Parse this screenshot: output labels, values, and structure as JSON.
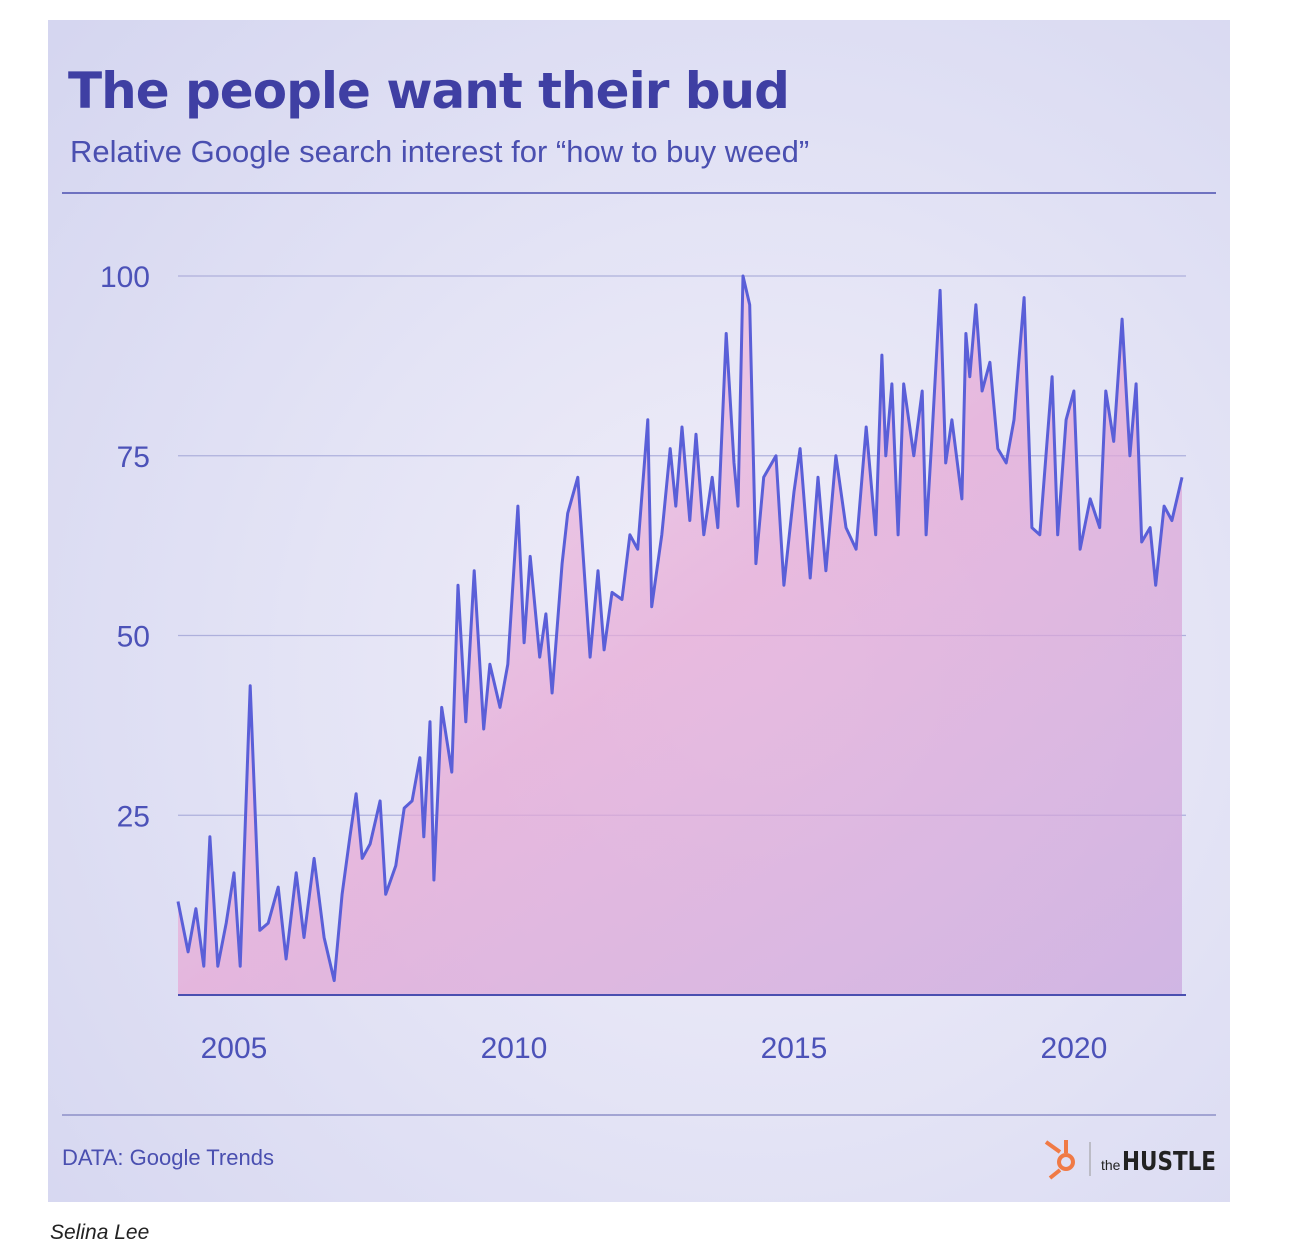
{
  "chart_data": {
    "type": "line",
    "title": "The people want their bud",
    "subtitle": "Relative Google search interest for “how to buy weed”",
    "source": "DATA: Google Trends",
    "brand": {
      "prefix": "the",
      "name": "HUSTLE"
    },
    "x": [
      2004.0,
      2004.18,
      2004.32,
      2004.46,
      2004.57,
      2004.71,
      2004.86,
      2005.0,
      2005.11,
      2005.29,
      2005.46,
      2005.61,
      2005.79,
      2005.93,
      2006.11,
      2006.25,
      2006.43,
      2006.61,
      2006.79,
      2006.93,
      2007.07,
      2007.18,
      2007.29,
      2007.43,
      2007.61,
      2007.71,
      2007.89,
      2008.04,
      2008.18,
      2008.32,
      2008.39,
      2008.5,
      2008.57,
      2008.71,
      2008.89,
      2009.0,
      2009.14,
      2009.29,
      2009.46,
      2009.57,
      2009.75,
      2009.89,
      2010.07,
      2010.18,
      2010.29,
      2010.46,
      2010.57,
      2010.68,
      2010.86,
      2010.96,
      2011.14,
      2011.36,
      2011.5,
      2011.61,
      2011.75,
      2011.93,
      2012.07,
      2012.21,
      2012.39,
      2012.46,
      2012.64,
      2012.79,
      2012.89,
      2013.0,
      2013.14,
      2013.25,
      2013.39,
      2013.54,
      2013.64,
      2013.79,
      2013.93,
      2014.0,
      2014.09,
      2014.21,
      2014.32,
      2014.46,
      2014.68,
      2014.82,
      2015.0,
      2015.11,
      2015.29,
      2015.43,
      2015.57,
      2015.75,
      2015.93,
      2016.11,
      2016.29,
      2016.46,
      2016.57,
      2016.64,
      2016.75,
      2016.86,
      2016.96,
      2017.14,
      2017.29,
      2017.36,
      2017.46,
      2017.61,
      2017.71,
      2017.82,
      2018.0,
      2018.07,
      2018.14,
      2018.25,
      2018.36,
      2018.5,
      2018.64,
      2018.79,
      2018.93,
      2019.11,
      2019.25,
      2019.39,
      2019.61,
      2019.71,
      2019.86,
      2020.0,
      2020.11,
      2020.29,
      2020.46,
      2020.57,
      2020.71,
      2020.86,
      2021.0,
      2021.11,
      2021.21,
      2021.36,
      2021.46,
      2021.61,
      2021.75,
      2021.93
    ],
    "series": [
      {
        "name": "how to buy weed",
        "color": "#5a5fd8",
        "values": [
          13,
          6,
          12,
          4,
          22,
          4,
          10,
          17,
          4,
          43,
          9,
          10,
          15,
          5,
          17,
          8,
          19,
          8,
          2,
          14,
          22,
          28,
          19,
          21,
          27,
          14,
          18,
          26,
          27,
          33,
          22,
          38,
          16,
          40,
          31,
          57,
          38,
          59,
          37,
          46,
          40,
          46,
          68,
          49,
          61,
          47,
          53,
          42,
          60,
          67,
          72,
          47,
          59,
          48,
          56,
          55,
          64,
          62,
          80,
          54,
          64,
          76,
          68,
          79,
          66,
          78,
          64,
          72,
          65,
          92,
          74,
          68,
          100,
          96,
          60,
          72,
          75,
          57,
          70,
          76,
          58,
          72,
          59,
          75,
          65,
          62,
          79,
          64,
          89,
          75,
          85,
          64,
          85,
          75,
          84,
          64,
          77,
          98,
          74,
          80,
          69,
          92,
          86,
          96,
          84,
          88,
          76,
          74,
          80,
          97,
          65,
          64,
          86,
          64,
          80,
          84,
          62,
          69,
          65,
          84,
          77,
          94,
          75,
          85,
          63,
          65,
          57,
          68,
          66,
          72
        ]
      }
    ],
    "xlim": [
      2004,
      2021.93
    ],
    "xticks": [
      2005,
      2010,
      2015,
      2020
    ],
    "ylim": [
      0,
      100
    ],
    "yticks": [
      25,
      50,
      75,
      100
    ],
    "grid": true
  },
  "byline": "Selina Lee"
}
